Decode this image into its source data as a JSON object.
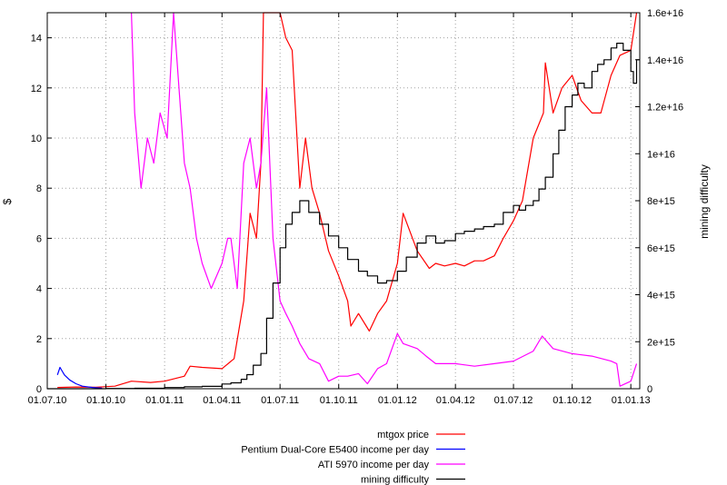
{
  "chart_data": {
    "type": "line",
    "xlabel": "",
    "ylabel": "$",
    "y2label": "mining difficulty",
    "xlim": [
      "2010-07-01",
      "2013-01-15"
    ],
    "ylim": [
      0,
      15
    ],
    "y2lim": [
      0,
      1.6e+16
    ],
    "grid": true,
    "legend_position": "bottom-right",
    "x_ticks": [
      "01.07.10",
      "01.10.10",
      "01.01.11",
      "01.04.11",
      "01.07.11",
      "01.10.11",
      "01.01.12",
      "01.04.12",
      "01.07.12",
      "01.10.12",
      "01.01.13"
    ],
    "x_tick_dates": [
      "2010-07-01",
      "2010-10-01",
      "2011-01-01",
      "2011-04-01",
      "2011-07-01",
      "2011-10-01",
      "2012-01-01",
      "2012-04-01",
      "2012-07-01",
      "2012-10-01",
      "2013-01-01"
    ],
    "y_ticks": [
      "0",
      "2",
      "4",
      "6",
      "8",
      "10",
      "12",
      "14"
    ],
    "y_tick_values": [
      0,
      2,
      4,
      6,
      8,
      10,
      12,
      14
    ],
    "y2_ticks": [
      "0",
      "2e+15",
      "4e+15",
      "6e+15",
      "8e+15",
      "1e+16",
      "1.2e+16",
      "1.4e+16",
      "1.6e+16"
    ],
    "y2_tick_values": [
      0,
      2000000000000000.0,
      4000000000000000.0,
      6000000000000000.0,
      8000000000000000.0,
      1e+16,
      1.2e+16,
      1.4e+16,
      1.6e+16
    ],
    "series": [
      {
        "name": "mtgox price",
        "axis": "y",
        "color": "#ff0000",
        "x": [
          "2010-07-17",
          "2010-08-15",
          "2010-09-15",
          "2010-10-15",
          "2010-11-10",
          "2010-12-10",
          "2011-01-01",
          "2011-02-01",
          "2011-02-10",
          "2011-03-01",
          "2011-04-01",
          "2011-04-20",
          "2011-05-05",
          "2011-05-15",
          "2011-05-25",
          "2011-06-01",
          "2011-06-05",
          "2011-06-08",
          "2011-06-12",
          "2011-06-20",
          "2011-07-01",
          "2011-07-10",
          "2011-07-20",
          "2011-08-01",
          "2011-08-10",
          "2011-08-20",
          "2011-09-01",
          "2011-09-15",
          "2011-10-01",
          "2011-10-15",
          "2011-10-20",
          "2011-11-01",
          "2011-11-18",
          "2011-12-01",
          "2011-12-15",
          "2012-01-01",
          "2012-01-10",
          "2012-02-01",
          "2012-02-20",
          "2012-03-01",
          "2012-03-15",
          "2012-04-01",
          "2012-04-15",
          "2012-05-01",
          "2012-05-15",
          "2012-06-01",
          "2012-06-15",
          "2012-07-01",
          "2012-07-15",
          "2012-08-01",
          "2012-08-17",
          "2012-08-20",
          "2012-09-01",
          "2012-09-15",
          "2012-10-01",
          "2012-10-15",
          "2012-11-01",
          "2012-11-15",
          "2012-12-01",
          "2012-12-15",
          "2013-01-01",
          "2013-01-10"
        ],
        "values": [
          0.05,
          0.07,
          0.06,
          0.1,
          0.3,
          0.25,
          0.3,
          0.5,
          0.9,
          0.85,
          0.8,
          1.2,
          3.5,
          7,
          6,
          9,
          15,
          30,
          17,
          16,
          15,
          14,
          13.5,
          8,
          10,
          8,
          7,
          5.5,
          4.5,
          3.5,
          2.5,
          3,
          2.3,
          3,
          3.5,
          5,
          7,
          5.5,
          4.8,
          5,
          4.9,
          5,
          4.9,
          5.1,
          5.1,
          5.3,
          6,
          6.7,
          7.5,
          10,
          11,
          13,
          11,
          12,
          12.5,
          11.5,
          11,
          11,
          12.5,
          13.3,
          13.5,
          15
        ]
      },
      {
        "name": "Pentium Dual-Core E5400 income per day",
        "axis": "y",
        "color": "#0000ff",
        "x": [
          "2010-07-17",
          "2010-07-21",
          "2010-07-28",
          "2010-08-05",
          "2010-08-15",
          "2010-08-25",
          "2010-09-10",
          "2010-09-25"
        ],
        "values": [
          0.55,
          0.85,
          0.55,
          0.35,
          0.2,
          0.1,
          0.05,
          0.02
        ]
      },
      {
        "name": "ATI 5970 income per day",
        "axis": "y",
        "color": "#ff00ff",
        "x": [
          "2010-11-10",
          "2010-11-15",
          "2010-11-25",
          "2010-12-05",
          "2010-12-15",
          "2010-12-25",
          "2011-01-05",
          "2011-01-15",
          "2011-02-01",
          "2011-02-10",
          "2011-02-20",
          "2011-03-01",
          "2011-03-15",
          "2011-04-01",
          "2011-04-10",
          "2011-04-15",
          "2011-04-25",
          "2011-05-05",
          "2011-05-15",
          "2011-05-25",
          "2011-06-01",
          "2011-06-10",
          "2011-06-20",
          "2011-07-01",
          "2011-07-10",
          "2011-07-20",
          "2011-08-01",
          "2011-08-15",
          "2011-09-01",
          "2011-09-15",
          "2011-10-01",
          "2011-10-15",
          "2011-11-01",
          "2011-11-15",
          "2011-12-01",
          "2011-12-15",
          "2012-01-01",
          "2012-01-10",
          "2012-02-01",
          "2012-02-15",
          "2012-03-01",
          "2012-04-01",
          "2012-05-01",
          "2012-06-01",
          "2012-07-01",
          "2012-08-01",
          "2012-08-15",
          "2012-09-01",
          "2012-10-01",
          "2012-11-01",
          "2012-12-01",
          "2012-12-10",
          "2012-12-15",
          "2013-01-01",
          "2013-01-10"
        ],
        "values": [
          15,
          11,
          8,
          10,
          9,
          11,
          10,
          15,
          9,
          8,
          6,
          5,
          4,
          5,
          6,
          6,
          4,
          9,
          10,
          8,
          9,
          12,
          6,
          3.5,
          3,
          2.5,
          1.8,
          1.2,
          1,
          0.3,
          0.5,
          0.5,
          0.6,
          0.2,
          0.8,
          1,
          2.2,
          1.8,
          1.6,
          1.3,
          1,
          1,
          0.9,
          1,
          1.1,
          1.5,
          2.1,
          1.6,
          1.4,
          1.3,
          1.1,
          1,
          0.1,
          0.3,
          1
        ]
      },
      {
        "name": "mining difficulty",
        "axis": "y2",
        "color": "#000000",
        "step": true,
        "x": [
          "2010-07-01",
          "2010-08-15",
          "2010-10-01",
          "2010-11-15",
          "2011-01-01",
          "2011-02-01",
          "2011-03-01",
          "2011-04-01",
          "2011-04-15",
          "2011-05-01",
          "2011-05-10",
          "2011-05-20",
          "2011-06-01",
          "2011-06-10",
          "2011-06-20",
          "2011-07-01",
          "2011-07-10",
          "2011-07-20",
          "2011-08-01",
          "2011-08-15",
          "2011-09-01",
          "2011-09-15",
          "2011-10-01",
          "2011-10-15",
          "2011-11-01",
          "2011-11-15",
          "2011-12-01",
          "2011-12-15",
          "2012-01-01",
          "2012-01-15",
          "2012-02-01",
          "2012-02-15",
          "2012-03-01",
          "2012-03-15",
          "2012-04-01",
          "2012-04-15",
          "2012-05-01",
          "2012-05-15",
          "2012-06-01",
          "2012-06-15",
          "2012-07-01",
          "2012-07-10",
          "2012-07-20",
          "2012-08-01",
          "2012-08-10",
          "2012-08-20",
          "2012-09-01",
          "2012-09-10",
          "2012-09-20",
          "2012-10-01",
          "2012-10-10",
          "2012-10-20",
          "2012-11-01",
          "2012-11-10",
          "2012-11-20",
          "2012-12-01",
          "2012-12-10",
          "2012-12-20",
          "2013-01-01",
          "2013-01-05",
          "2013-01-10"
        ],
        "values": [
          100000000000.0,
          1000000000000.0,
          10000000000000.0,
          20000000000000.0,
          50000000000000.0,
          80000000000000.0,
          100000000000000.0,
          200000000000000.0,
          250000000000000.0,
          400000000000000.0,
          600000000000000.0,
          1000000000000000.0,
          1500000000000000.0,
          3000000000000000.0,
          4500000000000000.0,
          6000000000000000.0,
          7000000000000000.0,
          7500000000000000.0,
          8000000000000000.0,
          7500000000000000.0,
          7000000000000000.0,
          6500000000000000.0,
          6000000000000000.0,
          5500000000000000.0,
          5000000000000000.0,
          4800000000000000.0,
          4500000000000000.0,
          4600000000000000.0,
          5000000000000000.0,
          5600000000000000.0,
          6200000000000000.0,
          6500000000000000.0,
          6200000000000000.0,
          6300000000000000.0,
          6600000000000000.0,
          6700000000000000.0,
          6800000000000000.0,
          6900000000000000.0,
          7000000000000000.0,
          7500000000000000.0,
          7800000000000000.0,
          7600000000000000.0,
          7800000000000000.0,
          8000000000000000.0,
          8500000000000000.0,
          9000000000000000.0,
          1e+16,
          1.1e+16,
          1.2e+16,
          1.25e+16,
          1.3e+16,
          1.28e+16,
          1.35e+16,
          1.38e+16,
          1.4e+16,
          1.45e+16,
          1.47e+16,
          1.44e+16,
          1.35e+16,
          1.3e+16,
          1.4e+16
        ]
      }
    ]
  }
}
